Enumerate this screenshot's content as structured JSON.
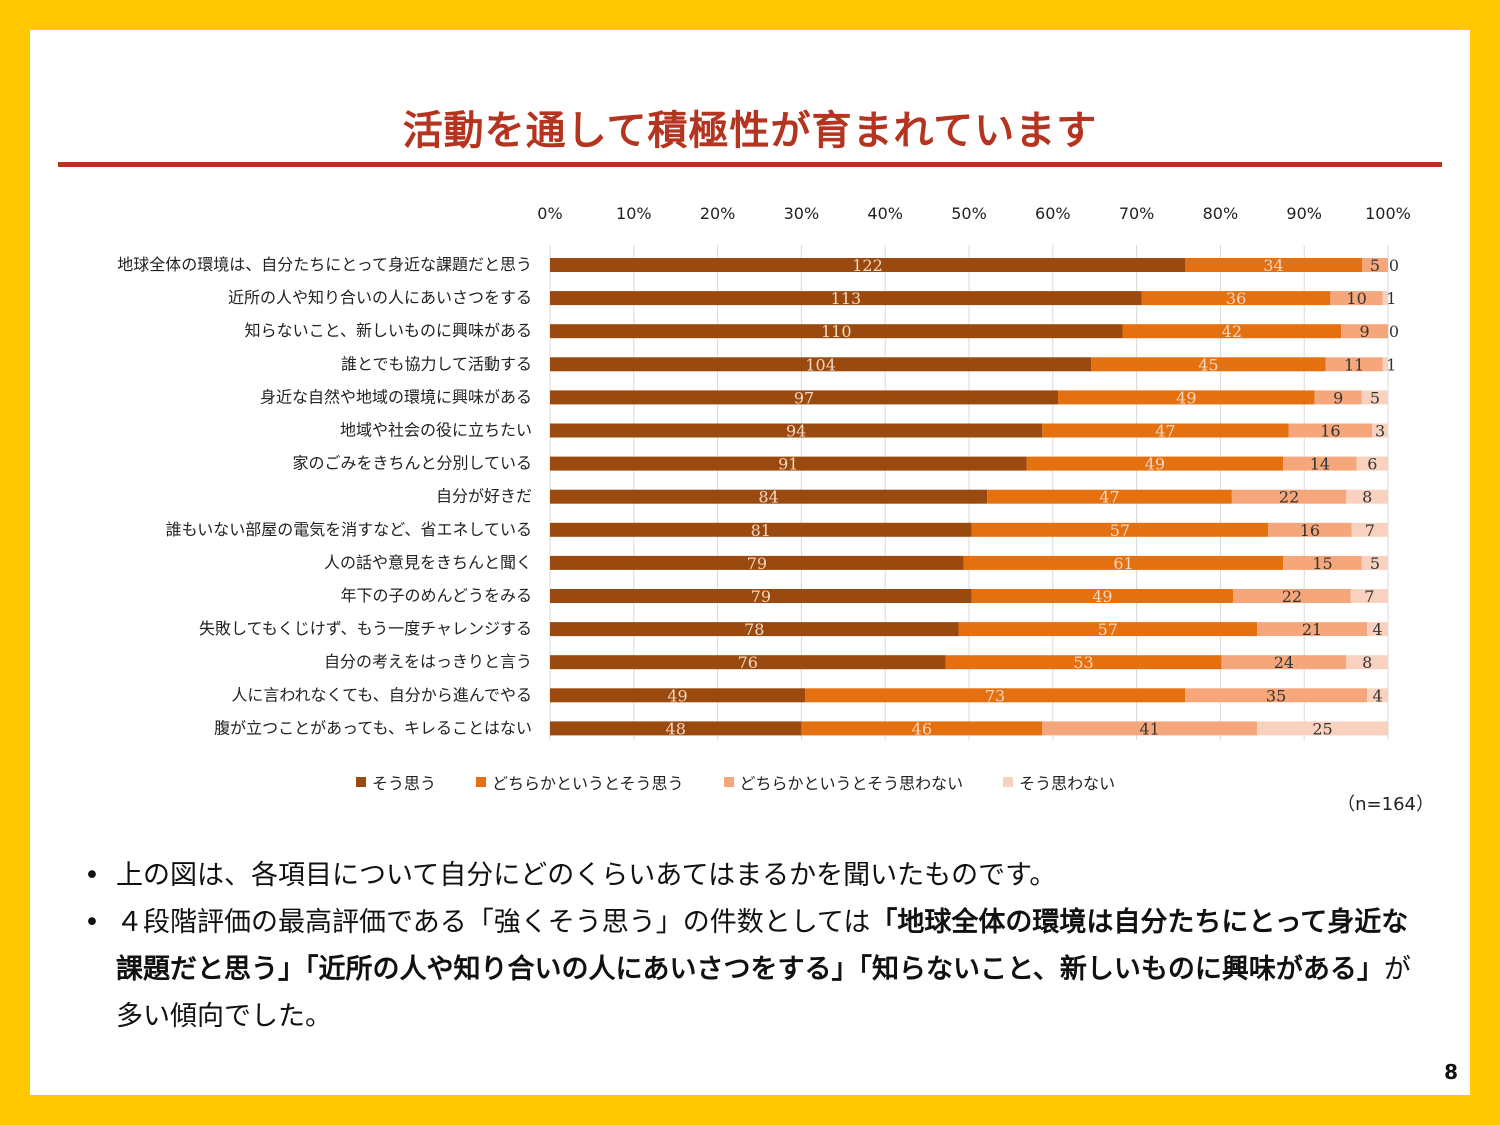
{
  "slide": {
    "title": "活動を通して積極性が育まれています",
    "n_note": "（n=164）",
    "page_number": "8",
    "bullets": {
      "b1": "上の図は、各項目について自分にどのくらいあてはまるかを聞いたものです。",
      "b2_part1": "４段階評価の最高評価である「強くそう思う」の件数としては",
      "b2_bold": "「地球全体の環境は自分たちにとって身近な課題だと思う」「近所の人や知り合いの人にあいさつをする」「知らないこと、新しいものに興味がある」",
      "b2_part2": "が多い傾向でした。"
    }
  },
  "colors": {
    "frame": "#FFC800",
    "title": "#B5341F",
    "series": [
      "#9A4A0E",
      "#E5700F",
      "#F5A77B",
      "#F9D2BF"
    ]
  },
  "chart_data": {
    "type": "bar",
    "orientation": "horizontal",
    "stacked": "percent",
    "x_ticks": [
      "0%",
      "10%",
      "20%",
      "30%",
      "40%",
      "50%",
      "60%",
      "70%",
      "80%",
      "90%",
      "100%"
    ],
    "grid": true,
    "legend_position": "bottom",
    "categories": [
      "地球全体の環境は、自分たちにとって身近な課題だと思う",
      "近所の人や知り合いの人にあいさつをする",
      "知らないこと、新しいものに興味がある",
      "誰とでも協力して活動する",
      "身近な自然や地域の環境に興味がある",
      "地域や社会の役に立ちたい",
      "家のごみをきちんと分別している",
      "自分が好きだ",
      "誰もいない部屋の電気を消すなど、省エネしている",
      "人の話や意見をきちんと聞く",
      "年下の子のめんどうをみる",
      "失敗してもくじけず、もう一度チャレンジする",
      "自分の考えをはっきりと言う",
      "人に言われなくても、自分から進んでやる",
      "腹が立つことがあっても、キレることはない"
    ],
    "series": [
      {
        "name": "そう思う",
        "values": [
          122,
          113,
          110,
          104,
          97,
          94,
          91,
          84,
          81,
          79,
          79,
          78,
          76,
          49,
          48
        ]
      },
      {
        "name": "どちらかというとそう思う",
        "values": [
          34,
          36,
          42,
          45,
          49,
          47,
          49,
          47,
          57,
          61,
          49,
          57,
          53,
          73,
          46
        ]
      },
      {
        "name": "どちらかというとそう思わない",
        "values": [
          5,
          10,
          9,
          11,
          9,
          16,
          14,
          22,
          16,
          15,
          22,
          21,
          24,
          35,
          41
        ]
      },
      {
        "name": "そう思わない",
        "values": [
          0,
          1,
          0,
          1,
          5,
          3,
          6,
          8,
          7,
          5,
          7,
          4,
          8,
          4,
          25
        ]
      }
    ]
  }
}
